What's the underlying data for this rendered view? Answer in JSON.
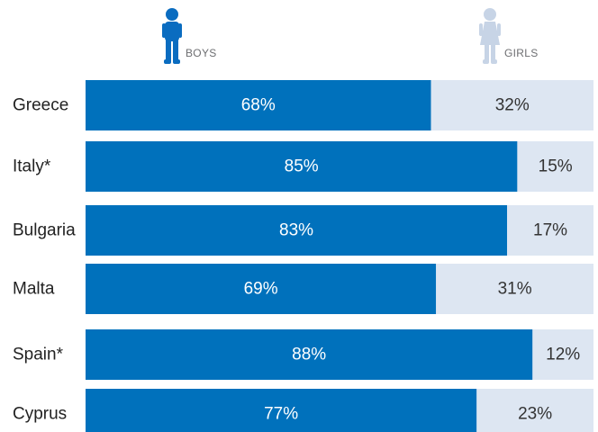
{
  "legend": {
    "boys_label": "BOYS",
    "girls_label": "GIRLS"
  },
  "colors": {
    "boys": "#0071bc",
    "girls": "#dde6f2",
    "boys_text": "#ffffff",
    "girls_text": "#333333",
    "category_text": "#222222",
    "legend_text": "#6d6e71",
    "boys_icon": "#0a6cc0",
    "girls_icon": "#c7d4e6"
  },
  "chart_data": {
    "type": "bar",
    "orientation": "horizontal",
    "stacked": true,
    "percent_stacked": true,
    "categories": [
      "Greece",
      "Italy*",
      "Bulgaria",
      "Malta",
      "Spain*",
      "Cyprus"
    ],
    "series": [
      {
        "name": "BOYS",
        "values": [
          68,
          85,
          83,
          69,
          88,
          77
        ],
        "labels": [
          "68%",
          "85%",
          "83%",
          "69%",
          "88%",
          "77%"
        ]
      },
      {
        "name": "GIRLS",
        "values": [
          32,
          15,
          17,
          31,
          12,
          23
        ],
        "labels": [
          "32%",
          "15%",
          "17%",
          "31%",
          "12%",
          "23%"
        ]
      }
    ],
    "xlim": [
      0,
      100
    ],
    "grid": false,
    "legend_position": "top"
  }
}
